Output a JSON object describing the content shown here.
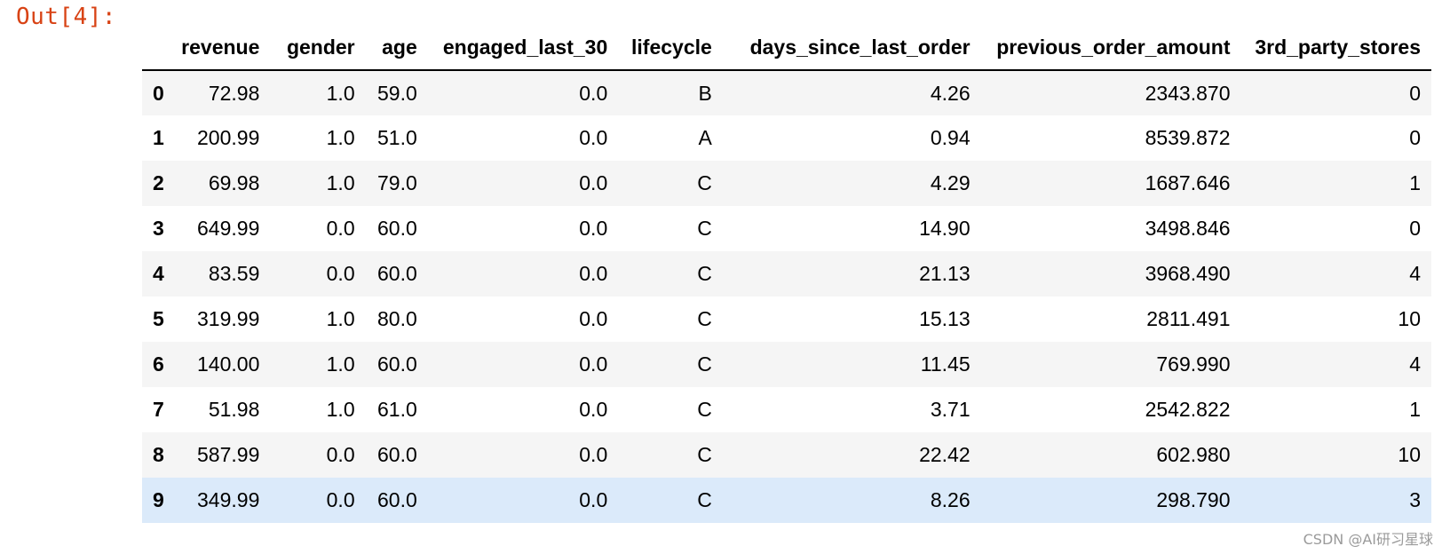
{
  "output_prompt": "Out[4]:",
  "columns": {
    "revenue": "revenue",
    "gender": "gender",
    "age": "age",
    "engaged": "engaged_last_30",
    "lifecycle": "lifecycle",
    "days": "days_since_last_order",
    "prev": "previous_order_amount",
    "third": "3rd_party_stores"
  },
  "rows": [
    {
      "idx": "0",
      "revenue": "72.98",
      "gender": "1.0",
      "age": "59.0",
      "engaged": "0.0",
      "lifecycle": "B",
      "days": "4.26",
      "prev": "2343.870",
      "third": "0"
    },
    {
      "idx": "1",
      "revenue": "200.99",
      "gender": "1.0",
      "age": "51.0",
      "engaged": "0.0",
      "lifecycle": "A",
      "days": "0.94",
      "prev": "8539.872",
      "third": "0"
    },
    {
      "idx": "2",
      "revenue": "69.98",
      "gender": "1.0",
      "age": "79.0",
      "engaged": "0.0",
      "lifecycle": "C",
      "days": "4.29",
      "prev": "1687.646",
      "third": "1"
    },
    {
      "idx": "3",
      "revenue": "649.99",
      "gender": "0.0",
      "age": "60.0",
      "engaged": "0.0",
      "lifecycle": "C",
      "days": "14.90",
      "prev": "3498.846",
      "third": "0"
    },
    {
      "idx": "4",
      "revenue": "83.59",
      "gender": "0.0",
      "age": "60.0",
      "engaged": "0.0",
      "lifecycle": "C",
      "days": "21.13",
      "prev": "3968.490",
      "third": "4"
    },
    {
      "idx": "5",
      "revenue": "319.99",
      "gender": "1.0",
      "age": "80.0",
      "engaged": "0.0",
      "lifecycle": "C",
      "days": "15.13",
      "prev": "2811.491",
      "third": "10"
    },
    {
      "idx": "6",
      "revenue": "140.00",
      "gender": "1.0",
      "age": "60.0",
      "engaged": "0.0",
      "lifecycle": "C",
      "days": "11.45",
      "prev": "769.990",
      "third": "4"
    },
    {
      "idx": "7",
      "revenue": "51.98",
      "gender": "1.0",
      "age": "61.0",
      "engaged": "0.0",
      "lifecycle": "C",
      "days": "3.71",
      "prev": "2542.822",
      "third": "1"
    },
    {
      "idx": "8",
      "revenue": "587.99",
      "gender": "0.0",
      "age": "60.0",
      "engaged": "0.0",
      "lifecycle": "C",
      "days": "22.42",
      "prev": "602.980",
      "third": "10"
    },
    {
      "idx": "9",
      "revenue": "349.99",
      "gender": "0.0",
      "age": "60.0",
      "engaged": "0.0",
      "lifecycle": "C",
      "days": "8.26",
      "prev": "298.790",
      "third": "3"
    }
  ],
  "watermark": "CSDN @AI研习星球",
  "colors": {
    "prompt": "#d84315",
    "stripe": "#f5f5f5",
    "hover": "#dbeafa"
  }
}
